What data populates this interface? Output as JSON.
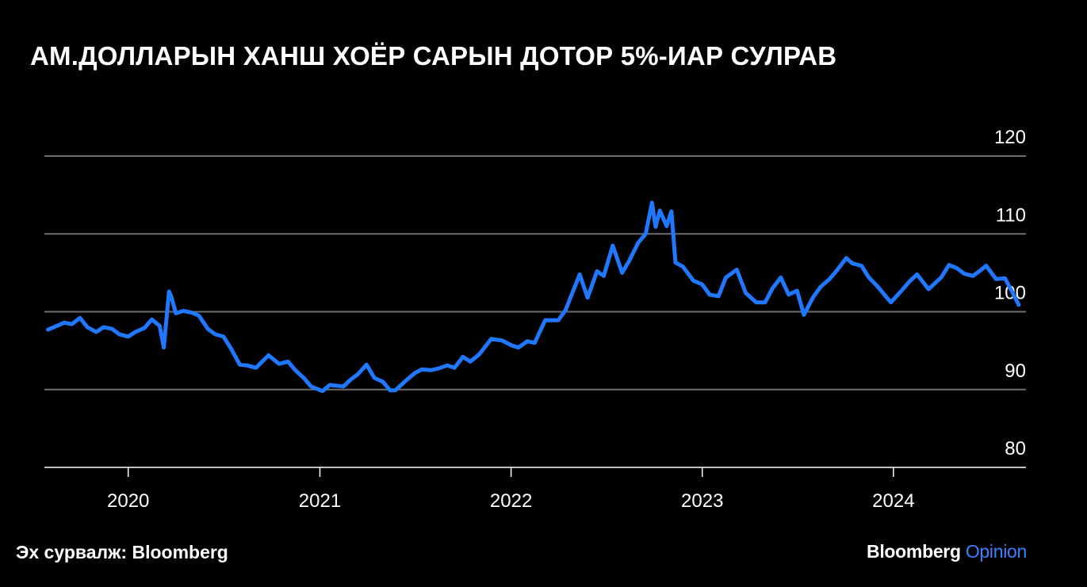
{
  "header": {
    "title": "АМ.ДОЛЛАРЫН ХАНШ ХОЁР САРЫН ДОТОР 5%-ИАР СУЛРАВ"
  },
  "footer": {
    "source": "Эх сурвалж: Bloomberg",
    "brand_name": "Bloomberg",
    "brand_suffix": "Opinion"
  },
  "colors": {
    "background": "#000000",
    "series": "#1f78ff",
    "grid": "#6e6e6e",
    "text": "#ffffff"
  },
  "chart_data": {
    "type": "line",
    "title": "АМ.ДОЛЛАРЫН ХАНШ ХОЁР САРЫН ДОТОР 5%-ИАР СУЛРАВ",
    "xlabel": "",
    "ylabel": "",
    "ylim": [
      80,
      120
    ],
    "xlim": [
      "2019-07-25",
      "2024-09-10"
    ],
    "yticks": [
      "80",
      "90",
      "100",
      "110",
      "120"
    ],
    "xticks": [
      "2020",
      "2021",
      "2022",
      "2023",
      "2024"
    ],
    "grid": "horizontal",
    "y_axis_position": "right",
    "legend": "none",
    "series": [
      {
        "x": [
          "2019-08-01",
          "2019-08-15",
          "2019-09-01",
          "2019-09-15",
          "2019-10-01",
          "2019-10-15",
          "2019-11-01",
          "2019-11-15",
          "2019-12-01",
          "2019-12-15",
          "2020-01-01",
          "2020-01-15",
          "2020-02-01",
          "2020-02-15",
          "2020-03-01",
          "2020-03-09",
          "2020-03-19",
          "2020-03-23",
          "2020-04-01",
          "2020-04-15",
          "2020-05-01",
          "2020-05-15",
          "2020-06-01",
          "2020-06-15",
          "2020-07-01",
          "2020-07-15",
          "2020-08-01",
          "2020-08-15",
          "2020-09-01",
          "2020-09-25",
          "2020-10-15",
          "2020-11-01",
          "2020-11-15",
          "2020-12-01",
          "2020-12-15",
          "2021-01-06",
          "2021-01-20",
          "2021-02-01",
          "2021-02-15",
          "2021-03-01",
          "2021-03-15",
          "2021-03-31",
          "2021-04-15",
          "2021-05-01",
          "2021-05-15",
          "2021-05-25",
          "2021-06-15",
          "2021-07-01",
          "2021-07-15",
          "2021-08-01",
          "2021-08-15",
          "2021-09-01",
          "2021-09-15",
          "2021-10-01",
          "2021-10-15",
          "2021-11-01",
          "2021-11-24",
          "2021-12-15",
          "2022-01-01",
          "2022-01-15",
          "2022-02-01",
          "2022-02-15",
          "2022-03-07",
          "2022-04-01",
          "2022-04-15",
          "2022-05-12",
          "2022-05-27",
          "2022-06-14",
          "2022-06-27",
          "2022-07-14",
          "2022-08-01",
          "2022-08-15",
          "2022-09-01",
          "2022-09-15",
          "2022-09-27",
          "2022-10-04",
          "2022-10-12",
          "2022-10-25",
          "2022-11-03",
          "2022-11-11",
          "2022-11-25",
          "2022-12-15",
          "2023-01-01",
          "2023-01-15",
          "2023-02-01",
          "2023-02-15",
          "2023-03-08",
          "2023-03-25",
          "2023-04-14",
          "2023-05-01",
          "2023-05-15",
          "2023-05-31",
          "2023-06-15",
          "2023-07-01",
          "2023-07-14",
          "2023-08-01",
          "2023-08-15",
          "2023-09-01",
          "2023-09-15",
          "2023-10-03",
          "2023-10-15",
          "2023-11-01",
          "2023-11-15",
          "2023-12-01",
          "2023-12-27",
          "2024-01-15",
          "2024-02-01",
          "2024-02-15",
          "2024-03-08",
          "2024-04-01",
          "2024-04-16",
          "2024-05-01",
          "2024-05-15",
          "2024-06-01",
          "2024-06-15",
          "2024-06-26",
          "2024-07-15",
          "2024-08-01",
          "2024-08-15",
          "2024-08-27"
        ],
        "y": [
          97.7,
          98.1,
          98.6,
          98.4,
          99.2,
          98.0,
          97.4,
          98.0,
          97.8,
          97.1,
          96.8,
          97.4,
          97.9,
          99.0,
          98.2,
          95.4,
          102.6,
          102.0,
          99.8,
          100.1,
          99.9,
          99.5,
          97.8,
          97.1,
          96.8,
          95.3,
          93.2,
          93.1,
          92.8,
          94.4,
          93.3,
          93.6,
          92.5,
          91.5,
          90.4,
          89.8,
          90.6,
          90.5,
          90.4,
          91.3,
          92.0,
          93.2,
          91.5,
          91.0,
          89.9,
          89.9,
          91.2,
          92.1,
          92.6,
          92.5,
          92.7,
          93.1,
          92.8,
          94.2,
          93.6,
          94.5,
          96.5,
          96.3,
          95.7,
          95.4,
          96.2,
          96.0,
          98.9,
          98.9,
          100.2,
          104.8,
          101.8,
          105.2,
          104.6,
          108.5,
          105.0,
          106.6,
          108.9,
          110.0,
          114.0,
          110.9,
          113.0,
          111.0,
          112.9,
          106.3,
          105.8,
          104.0,
          103.5,
          102.2,
          102.0,
          104.4,
          105.4,
          102.4,
          101.2,
          101.2,
          103.0,
          104.4,
          102.2,
          102.7,
          99.6,
          101.9,
          103.2,
          104.2,
          105.3,
          106.9,
          106.2,
          105.9,
          104.4,
          103.3,
          101.2,
          102.6,
          103.9,
          104.8,
          102.9,
          104.4,
          106.0,
          105.6,
          104.9,
          104.6,
          105.3,
          105.9,
          104.2,
          104.3,
          102.5,
          100.9
        ]
      }
    ]
  }
}
